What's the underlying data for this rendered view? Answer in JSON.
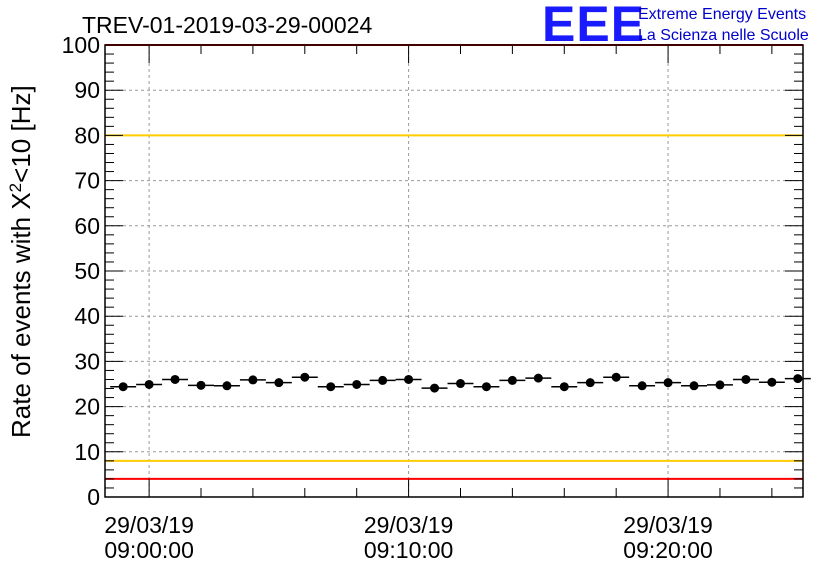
{
  "header": {
    "title": "TREV-01-2019-03-29-00024",
    "logo_text": "EEE",
    "logo_line1": "Extreme Energy Events",
    "logo_line2": "La Scienza nelle Scuole",
    "logo_color": "#1a1aff"
  },
  "chart_data": {
    "type": "scatter",
    "ylabel": "Rate of events with X²<10 [Hz]",
    "ylabel_main": "Rate of events with X",
    "ylabel_sup": "2",
    "ylabel_tail": "<10 [Hz]",
    "xlabel": "",
    "x_unit": "minutes from 29/03/19 09:00:00",
    "xlim": [
      -1.7,
      25.2
    ],
    "ylim": [
      0,
      100
    ],
    "yticks": [
      0,
      10,
      20,
      30,
      40,
      50,
      60,
      70,
      80,
      90,
      100
    ],
    "xticks": [
      {
        "value": 0,
        "date": "29/03/19",
        "time": "09:00:00"
      },
      {
        "value": 10,
        "date": "29/03/19",
        "time": "09:10:00"
      },
      {
        "value": 20,
        "date": "29/03/19",
        "time": "09:20:00"
      }
    ],
    "grid": true,
    "x_bin_width": 1,
    "points": [
      {
        "x": -1.0,
        "y": 24.4
      },
      {
        "x": 0.0,
        "y": 24.9
      },
      {
        "x": 1.0,
        "y": 26.0
      },
      {
        "x": 2.0,
        "y": 24.7
      },
      {
        "x": 3.0,
        "y": 24.6
      },
      {
        "x": 4.0,
        "y": 25.9
      },
      {
        "x": 5.0,
        "y": 25.3
      },
      {
        "x": 6.0,
        "y": 26.5
      },
      {
        "x": 7.0,
        "y": 24.4
      },
      {
        "x": 8.0,
        "y": 24.9
      },
      {
        "x": 9.0,
        "y": 25.8
      },
      {
        "x": 10.0,
        "y": 26.0
      },
      {
        "x": 11.0,
        "y": 24.1
      },
      {
        "x": 12.0,
        "y": 25.1
      },
      {
        "x": 13.0,
        "y": 24.4
      },
      {
        "x": 14.0,
        "y": 25.8
      },
      {
        "x": 15.0,
        "y": 26.3
      },
      {
        "x": 16.0,
        "y": 24.4
      },
      {
        "x": 17.0,
        "y": 25.3
      },
      {
        "x": 18.0,
        "y": 26.5
      },
      {
        "x": 19.0,
        "y": 24.6
      },
      {
        "x": 20.0,
        "y": 25.3
      },
      {
        "x": 21.0,
        "y": 24.6
      },
      {
        "x": 22.0,
        "y": 24.8
      },
      {
        "x": 23.0,
        "y": 26.0
      },
      {
        "x": 24.0,
        "y": 25.4
      },
      {
        "x": 25.0,
        "y": 26.2
      }
    ],
    "reference_lines": [
      {
        "y": 100,
        "color": "#ff0000"
      },
      {
        "y": 80,
        "color": "#ffcc00"
      },
      {
        "y": 8,
        "color": "#ffcc00"
      },
      {
        "y": 4,
        "color": "#ff0000"
      }
    ]
  }
}
